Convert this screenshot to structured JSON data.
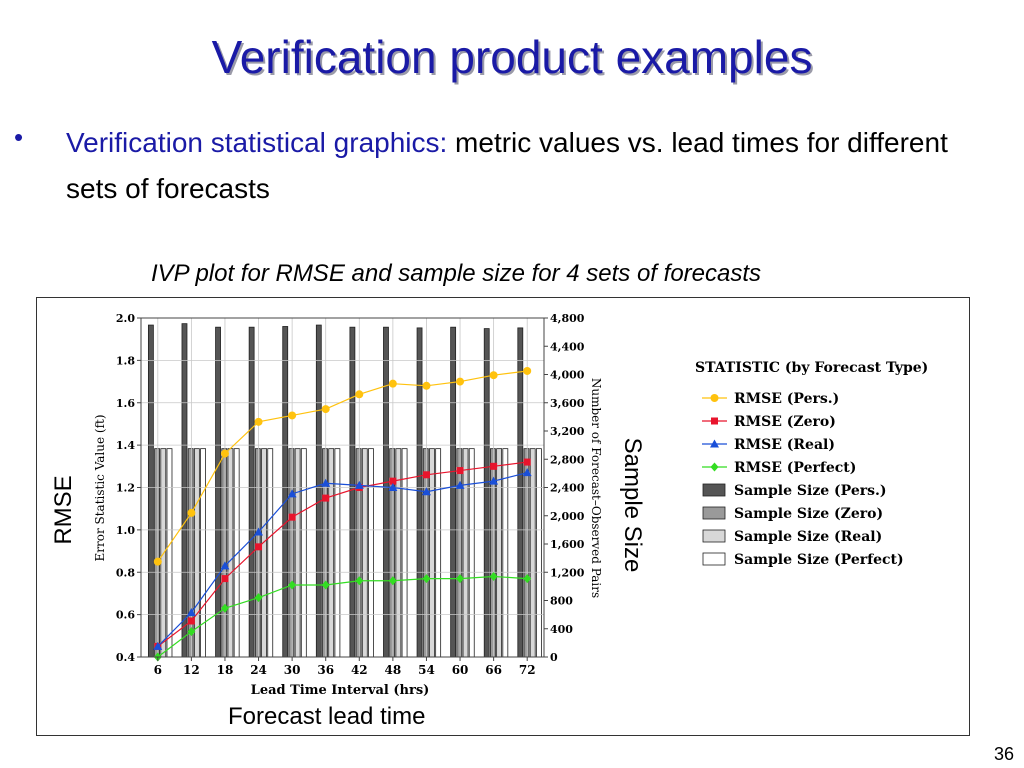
{
  "slide": {
    "title": "Verification product examples",
    "bullet_symbol": "•",
    "bullet_lead": "Verification statistical graphics:",
    "bullet_rest": " metric values vs. lead times for different sets of forecasts",
    "subtitle": "IVP plot for RMSE and sample size for 4 sets of forecasts",
    "rmse_label": "RMSE",
    "sample_size_label": "Sample Size",
    "x_caption": "Forecast lead time",
    "page_number": "36"
  },
  "chart_data": {
    "type": "line",
    "xlabel": "Lead Time Interval (hrs)",
    "ylabel": "Error Statistic Value (ft)",
    "y2label": "Number of Forecast–Observed Pairs",
    "x": [
      6,
      12,
      18,
      24,
      30,
      36,
      42,
      48,
      54,
      60,
      66,
      72
    ],
    "ylim": [
      0.4,
      2.0
    ],
    "yticks": [
      "2.0",
      "1.8",
      "1.6",
      "1.4",
      "1.2",
      "1.0",
      "0.8",
      "0.6",
      "0.4"
    ],
    "y2lim": [
      0,
      4800
    ],
    "y2ticks": [
      "4,800",
      "4,400",
      "4,000",
      "3,600",
      "3,200",
      "2,800",
      "2,400",
      "2,000",
      "1,600",
      "1,200",
      "800",
      "400",
      "0"
    ],
    "grid": true,
    "legend_title": "STATISTIC (by Forecast Type)",
    "legend_position": "right",
    "series": [
      {
        "name": "RMSE (Pers.)",
        "color": "#ffc20e",
        "marker": "circle",
        "values": [
          0.85,
          1.08,
          1.36,
          1.51,
          1.54,
          1.57,
          1.64,
          1.69,
          1.68,
          1.7,
          1.73,
          1.75
        ]
      },
      {
        "name": "RMSE (Zero)",
        "color": "#e8142c",
        "marker": "square",
        "values": [
          0.45,
          0.57,
          0.77,
          0.92,
          1.06,
          1.15,
          1.2,
          1.23,
          1.26,
          1.28,
          1.3,
          1.32
        ]
      },
      {
        "name": "RMSE (Real)",
        "color": "#1a4fd8",
        "marker": "triangle",
        "values": [
          0.45,
          0.61,
          0.83,
          0.99,
          1.17,
          1.22,
          1.21,
          1.2,
          1.18,
          1.21,
          1.23,
          1.27
        ]
      },
      {
        "name": "RMSE (Perfect)",
        "color": "#33dd22",
        "marker": "diamond",
        "values": [
          0.4,
          0.52,
          0.63,
          0.68,
          0.74,
          0.74,
          0.76,
          0.76,
          0.77,
          0.77,
          0.78,
          0.77
        ]
      }
    ],
    "bar_series": [
      {
        "name": "Sample Size (Pers.)",
        "color": "#555555",
        "values": [
          4700,
          4720,
          4670,
          4670,
          4680,
          4700,
          4670,
          4670,
          4660,
          4670,
          4650,
          4660
        ]
      },
      {
        "name": "Sample Size (Zero)",
        "color": "#9a9a9a",
        "values": [
          2950,
          2950,
          2950,
          2950,
          2950,
          2950,
          2950,
          2950,
          2950,
          2950,
          2950,
          2950
        ]
      },
      {
        "name": "Sample Size (Real)",
        "color": "#d8d8d8",
        "values": [
          2950,
          2950,
          2950,
          2950,
          2950,
          2950,
          2950,
          2950,
          2950,
          2950,
          2950,
          2950
        ]
      },
      {
        "name": "Sample Size (Perfect)",
        "color": "#ffffff",
        "values": [
          2950,
          2950,
          2950,
          2950,
          2950,
          2950,
          2950,
          2950,
          2950,
          2950,
          2950,
          2950
        ]
      }
    ]
  }
}
